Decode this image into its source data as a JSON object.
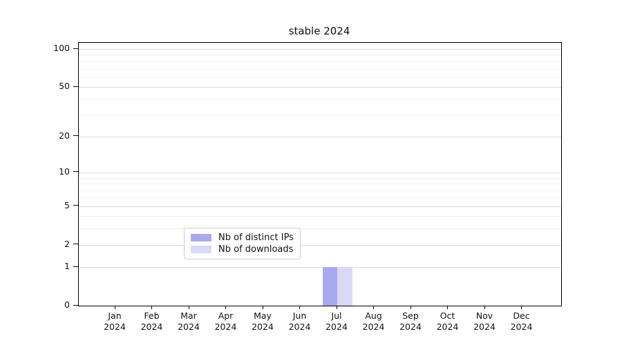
{
  "chart_data": {
    "type": "bar",
    "title": "stable 2024",
    "categories": [
      "Jan",
      "Feb",
      "Mar",
      "Apr",
      "May",
      "Jun",
      "Jul",
      "Aug",
      "Sep",
      "Oct",
      "Nov",
      "Dec"
    ],
    "category_year": "2024",
    "series": [
      {
        "name": "Nb of distinct IPs",
        "color": "#a9a9ee",
        "values": [
          0,
          0,
          0,
          0,
          0,
          0,
          1,
          0,
          0,
          0,
          0,
          0
        ]
      },
      {
        "name": "Nb of downloads",
        "color": "#d9d9f6",
        "values": [
          0,
          0,
          0,
          0,
          0,
          0,
          1,
          0,
          0,
          0,
          0,
          0
        ]
      }
    ],
    "y_axis": {
      "scale": "log10(1+v)",
      "tick_values": [
        100,
        50,
        20,
        10,
        5,
        2,
        1,
        0
      ],
      "major_grid_values": [
        1,
        2,
        5,
        10,
        20,
        50,
        100
      ],
      "minor_grid_values": [
        3,
        4,
        6,
        7,
        8,
        9,
        30,
        40,
        60,
        70,
        80,
        90
      ],
      "ylim": [
        0,
        113
      ],
      "grid": "on"
    },
    "x_axis": {
      "ticks_per_category": true
    },
    "legend": {
      "position": "lower center"
    },
    "colors": {
      "grid_major": "#d9d9d9",
      "grid_minor": "#efefef",
      "spine": "#000000",
      "background": "#ffffff"
    }
  }
}
